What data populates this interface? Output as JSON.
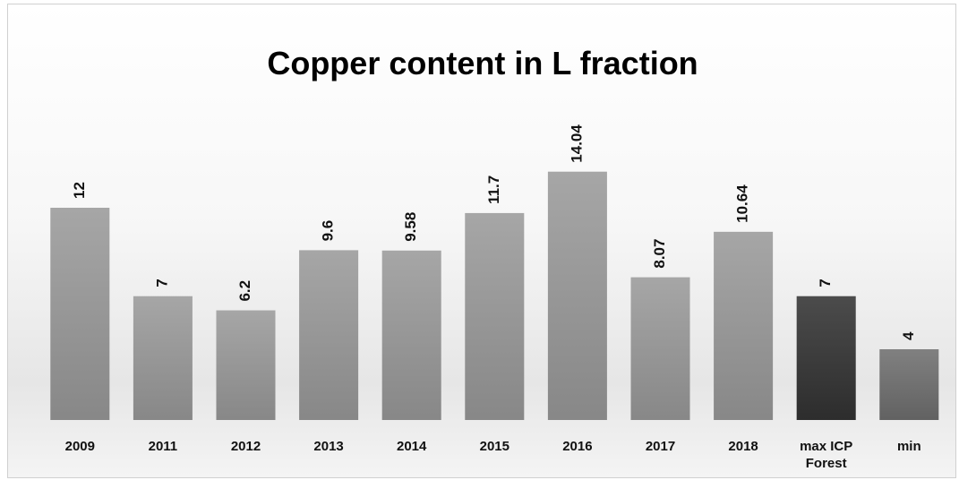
{
  "chart_data": {
    "type": "bar",
    "title": "Copper content in L fraction",
    "categories": [
      "2009",
      "2011",
      "2012",
      "2013",
      "2014",
      "2015",
      "2016",
      "2017",
      "2018",
      "max ICP Forest",
      "min"
    ],
    "values": [
      12,
      7,
      6.2,
      9.6,
      9.58,
      11.7,
      14.04,
      8.07,
      10.64,
      7,
      4
    ],
    "colors": [
      "#9a9a9a",
      "#9a9a9a",
      "#9a9a9a",
      "#9a9a9a",
      "#9a9a9a",
      "#9a9a9a",
      "#9a9a9a",
      "#9a9a9a",
      "#9a9a9a",
      "#333333",
      "#6f6f6f"
    ]
  }
}
